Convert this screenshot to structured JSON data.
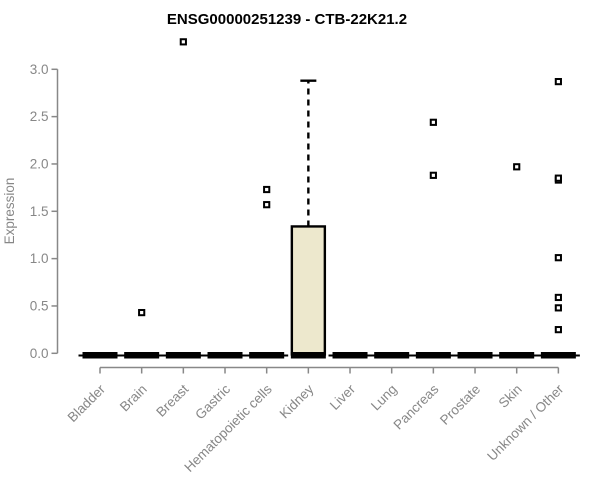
{
  "chart_data": {
    "type": "boxplot",
    "title": "ENSG00000251239 - CTB-22K21.2",
    "ylabel": "Expression",
    "xlabel": "",
    "ylim": [
      -0.05,
      3.4
    ],
    "yticks": [
      0.0,
      0.5,
      1.0,
      1.5,
      2.0,
      2.5,
      3.0
    ],
    "grid": false,
    "legend": "none",
    "categories": [
      "Bladder",
      "Brain",
      "Breast",
      "Gastric",
      "Hematopoietic cells",
      "Kidney",
      "Liver",
      "Lung",
      "Pancreas",
      "Prostate",
      "Skin",
      "Unknown / Other"
    ],
    "boxes": [
      {
        "category": "Bladder",
        "q1": 0,
        "median": 0,
        "q3": 0,
        "whisker_low": 0,
        "whisker_high": 0,
        "outliers": []
      },
      {
        "category": "Brain",
        "q1": 0,
        "median": 0,
        "q3": 0,
        "whisker_low": 0,
        "whisker_high": 0,
        "outliers": [
          0.43
        ]
      },
      {
        "category": "Breast",
        "q1": 0,
        "median": 0,
        "q3": 0,
        "whisker_low": 0,
        "whisker_high": 0,
        "outliers": [
          3.29
        ]
      },
      {
        "category": "Gastric",
        "q1": 0,
        "median": 0,
        "q3": 0,
        "whisker_low": 0,
        "whisker_high": 0,
        "outliers": []
      },
      {
        "category": "Hematopoietic cells",
        "q1": 0,
        "median": 0,
        "q3": 0,
        "whisker_low": 0,
        "whisker_high": 0,
        "outliers": [
          1.57,
          1.73
        ]
      },
      {
        "category": "Kidney",
        "q1": 0.02,
        "median": 0.02,
        "q3": 1.34,
        "whisker_low": 0,
        "whisker_high": 2.88,
        "outliers": []
      },
      {
        "category": "Liver",
        "q1": 0,
        "median": 0,
        "q3": 0,
        "whisker_low": 0,
        "whisker_high": 0,
        "outliers": []
      },
      {
        "category": "Lung",
        "q1": 0,
        "median": 0,
        "q3": 0,
        "whisker_low": 0,
        "whisker_high": 0,
        "outliers": []
      },
      {
        "category": "Pancreas",
        "q1": 0,
        "median": 0,
        "q3": 0,
        "whisker_low": 0,
        "whisker_high": 0,
        "outliers": [
          1.88,
          2.44
        ]
      },
      {
        "category": "Prostate",
        "q1": 0,
        "median": 0,
        "q3": 0,
        "whisker_low": 0,
        "whisker_high": 0,
        "outliers": []
      },
      {
        "category": "Skin",
        "q1": 0,
        "median": 0,
        "q3": 0,
        "whisker_low": 0,
        "whisker_high": 0,
        "outliers": [
          1.97
        ]
      },
      {
        "category": "Unknown / Other",
        "q1": 0,
        "median": 0,
        "q3": 0,
        "whisker_low": 0,
        "whisker_high": 0,
        "outliers": [
          0.25,
          0.48,
          0.59,
          1.01,
          1.83,
          1.85,
          2.87
        ]
      }
    ],
    "colors": {
      "box_fill": "#ede8cd",
      "box_border": "#000000",
      "median": "#000000",
      "outlier": "#000000",
      "axis": "#888888",
      "tick_text": "#878787",
      "title_text": "#000000",
      "background": "#ffffff"
    }
  }
}
